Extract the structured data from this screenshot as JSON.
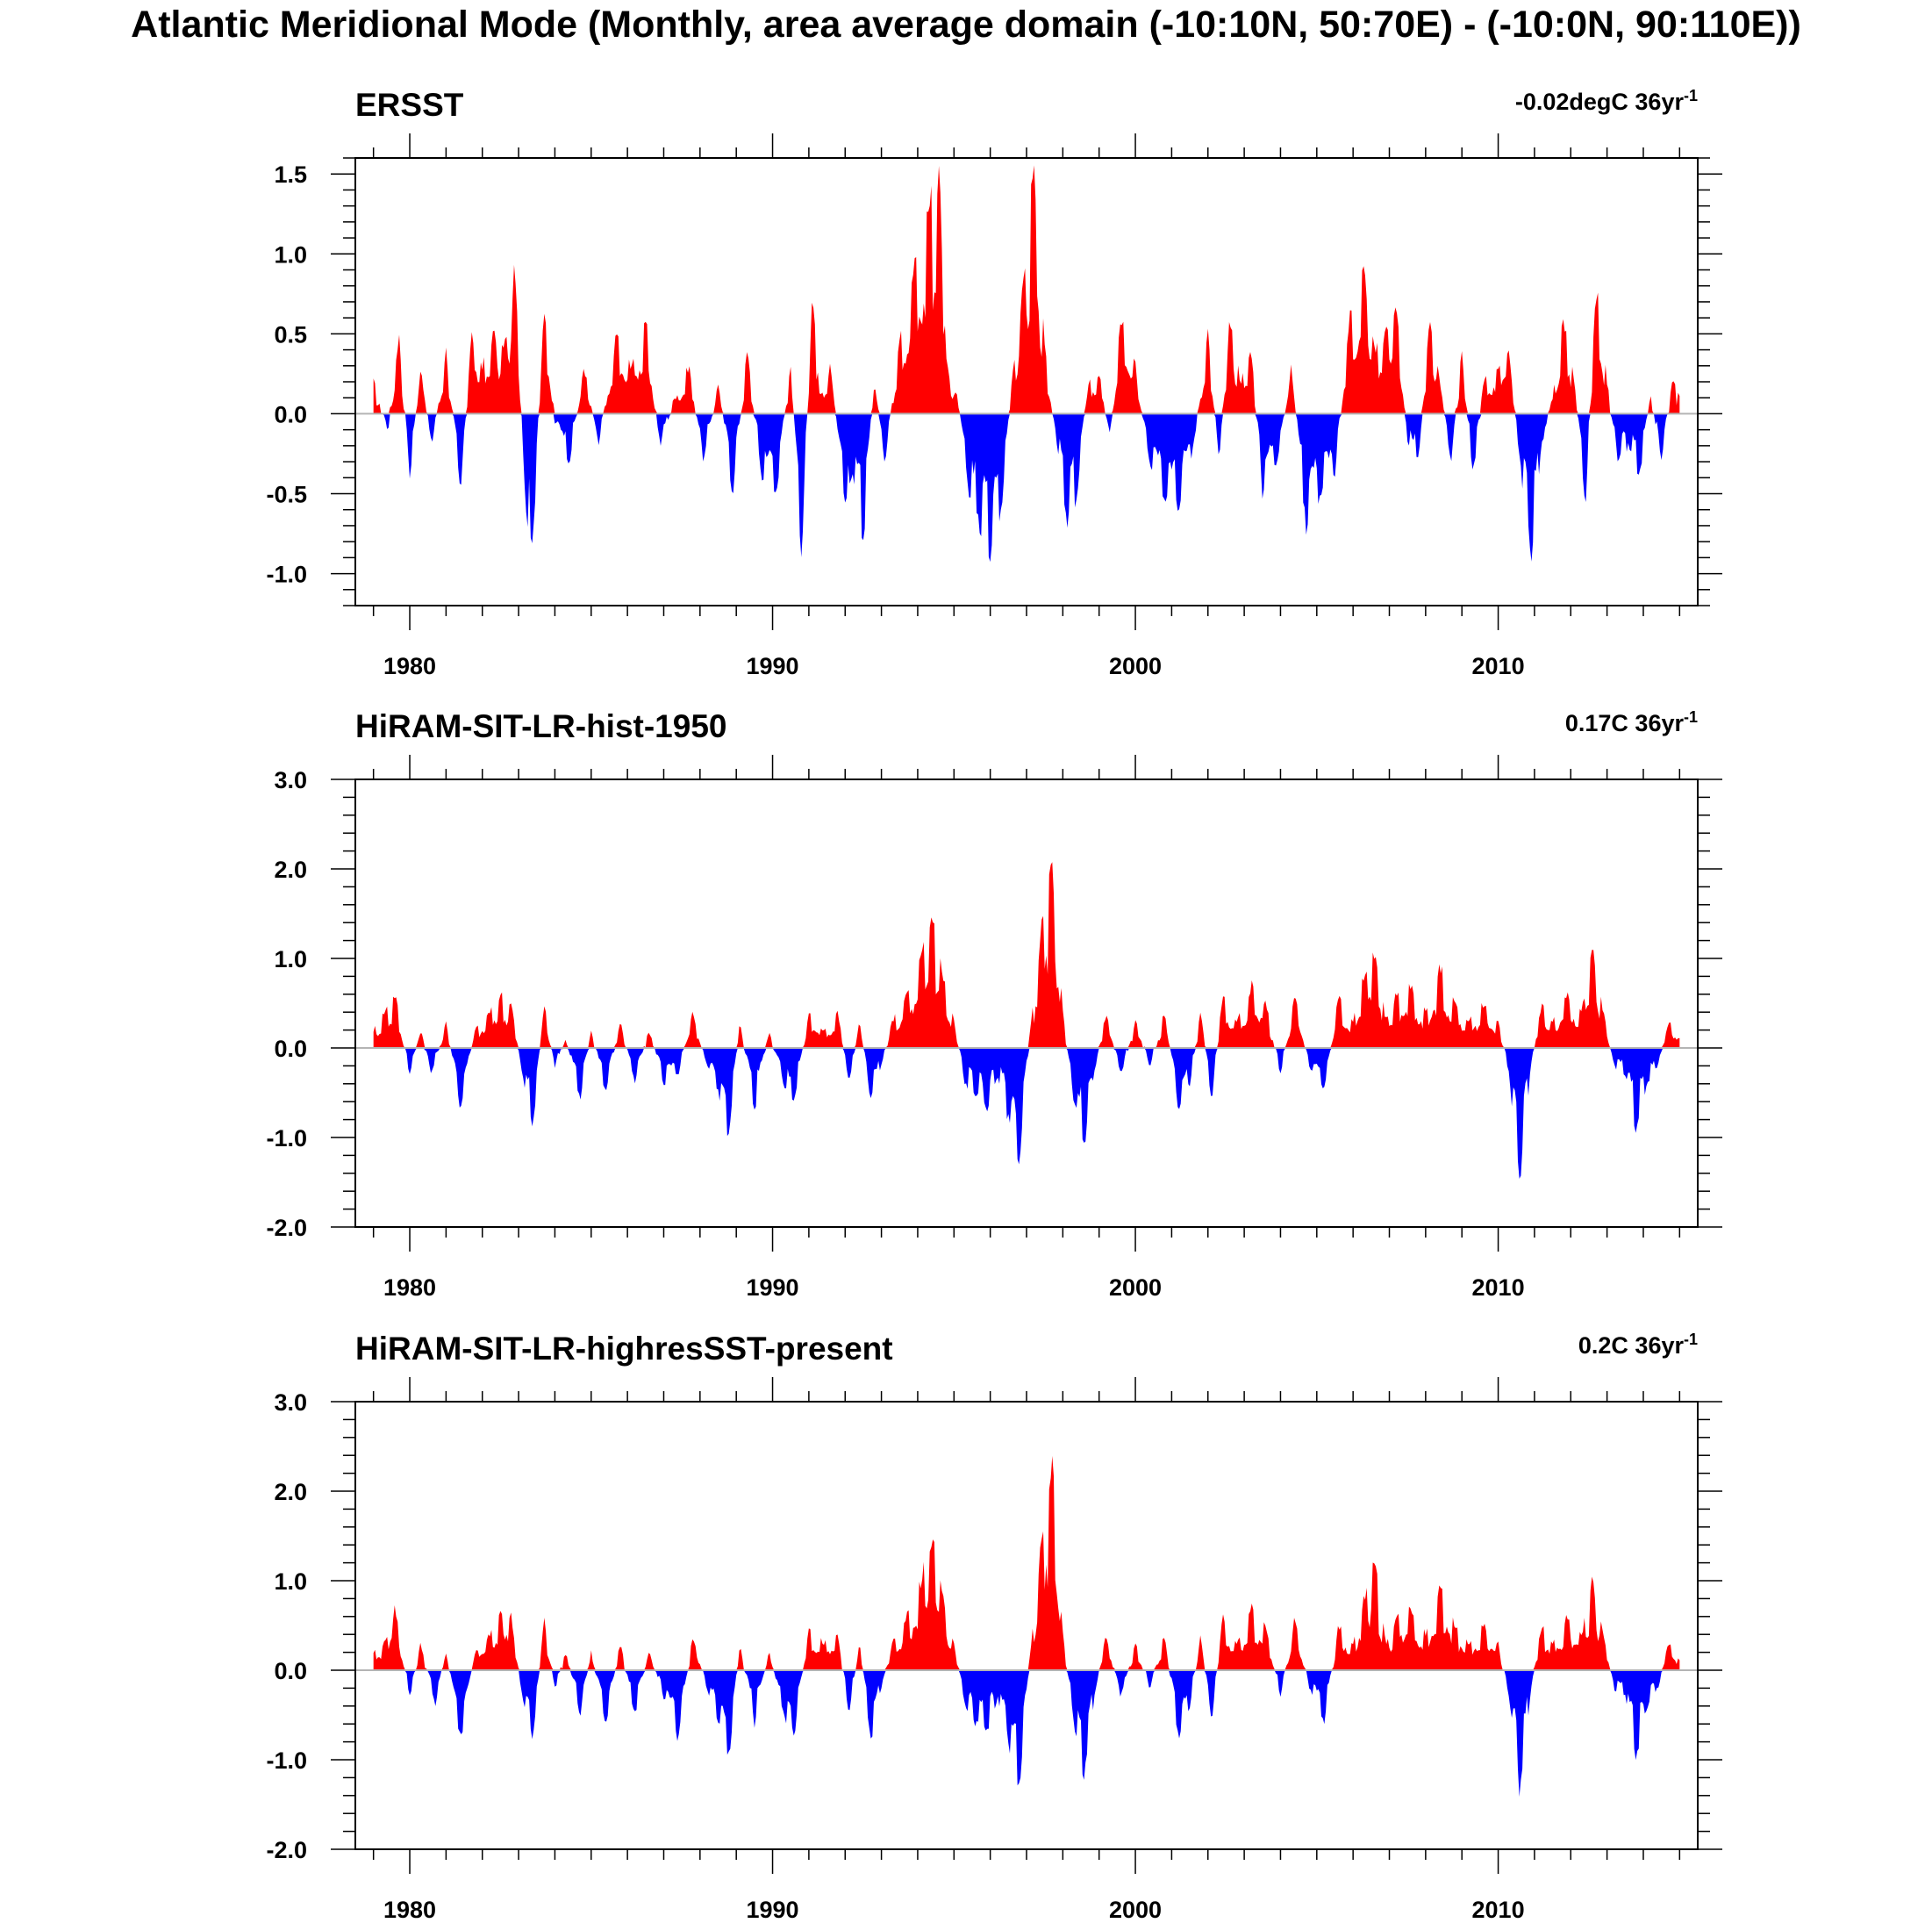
{
  "title": "Atlantic Meridional Mode (Monthly, area average domain (-10:10N, 50:70E) - (-10:0N, 90:110E))",
  "colors": {
    "positive": "#ff0000",
    "negative": "#0000ff",
    "zero_line": "#b4b4b4",
    "axis": "#000000"
  },
  "chart_data": [
    {
      "type": "area",
      "title": "ERSST",
      "trend": {
        "value": "-0.02degC 36yr",
        "exponent": "-1"
      },
      "xlim": [
        1978.5,
        2015.5
      ],
      "ylim": [
        -1.2,
        1.6
      ],
      "x_ticks": [
        1980,
        1990,
        2000,
        2010
      ],
      "x_tick_labels": [
        "1980",
        "1990",
        "2000",
        "2010"
      ],
      "y_ticks": [
        -1.0,
        -0.5,
        0.0,
        0.5,
        1.0,
        1.5
      ],
      "y_tick_labels": [
        "-1.0",
        "-0.5",
        "0.0",
        "0.5",
        "1.0",
        "1.5"
      ],
      "x_start": 1979.0,
      "x_end": 2015.0,
      "series": [
        {
          "x": [
            1979.0,
            1979.4,
            1979.7,
            1980.0,
            1980.3,
            1980.6,
            1981.0,
            1981.4,
            1981.7,
            1982.0,
            1982.3,
            1982.6,
            1982.9,
            1983.2,
            1983.4,
            1983.7,
            1984.0,
            1984.4,
            1984.8,
            1985.2,
            1985.7,
            1986.1,
            1986.5,
            1986.9,
            1987.3,
            1987.7,
            1988.1,
            1988.5,
            1988.9,
            1989.3,
            1989.7,
            1990.1,
            1990.5,
            1990.8,
            1991.1,
            1991.3,
            1991.6,
            1992.0,
            1992.2,
            1992.5,
            1992.8,
            1993.1,
            1993.5,
            1993.9,
            1994.3,
            1994.6,
            1994.8,
            1995.1,
            1995.4,
            1995.7,
            1996.0,
            1996.3,
            1996.6,
            1996.9,
            1997.2,
            1997.5,
            1997.8,
            1998.1,
            1998.4,
            1998.7,
            1999.0,
            1999.3,
            1999.6,
            2000.0,
            2000.4,
            2000.8,
            2001.2,
            2001.6,
            2002.0,
            2002.3,
            2002.6,
            2002.9,
            2003.2,
            2003.5,
            2003.9,
            2004.3,
            2004.7,
            2005.1,
            2005.5,
            2005.9,
            2006.3,
            2006.6,
            2006.9,
            2007.2,
            2007.5,
            2007.8,
            2008.1,
            2008.4,
            2008.7,
            2009.0,
            2009.3,
            2009.6,
            2010.0,
            2010.3,
            2010.6,
            2010.9,
            2011.2,
            2011.5,
            2011.8,
            2012.1,
            2012.4,
            2012.7,
            2013.0,
            2013.3,
            2013.6,
            2013.9,
            2014.2,
            2014.5,
            2014.8,
            2015.0
          ],
          "y": [
            0.2,
            -0.1,
            0.5,
            -0.4,
            0.3,
            -0.2,
            0.4,
            -0.5,
            0.5,
            0.3,
            0.5,
            0.4,
            0.9,
            -0.6,
            -0.8,
            0.7,
            -0.05,
            -0.3,
            0.3,
            -0.2,
            0.5,
            0.3,
            0.6,
            -0.2,
            0.1,
            0.3,
            -0.3,
            0.2,
            -0.5,
            0.4,
            -0.4,
            -0.5,
            0.3,
            -0.9,
            0.8,
            0.1,
            0.3,
            -0.6,
            -0.4,
            -0.8,
            0.2,
            -0.3,
            0.5,
            0.9,
            1.3,
            1.5,
            0.3,
            0.1,
            -0.5,
            -0.7,
            -0.9,
            -0.6,
            0.2,
            0.8,
            1.5,
            0.4,
            -0.1,
            -0.7,
            -0.5,
            0.2,
            0.25,
            -0.15,
            0.6,
            0.3,
            -0.3,
            -0.5,
            -0.6,
            -0.2,
            0.5,
            -0.3,
            0.6,
            0.2,
            0.4,
            -0.5,
            -0.3,
            0.3,
            -0.7,
            -0.5,
            -0.4,
            0.6,
            0.9,
            0.4,
            0.5,
            0.7,
            -0.2,
            -0.3,
            0.6,
            0.2,
            -0.3,
            0.4,
            -0.4,
            0.2,
            0.3,
            0.4,
            -0.3,
            -0.9,
            -0.2,
            0.1,
            0.6,
            0.2,
            -0.6,
            0.8,
            0.2,
            -0.3,
            -0.2,
            -0.4,
            0.1,
            -0.3,
            0.2,
            0.1
          ]
        }
      ]
    },
    {
      "type": "area",
      "title": "HiRAM-SIT-LR-hist-1950",
      "trend": {
        "value": "0.17C 36yr",
        "exponent": "-1"
      },
      "xlim": [
        1978.5,
        2015.5
      ],
      "ylim": [
        -2.0,
        3.0
      ],
      "x_ticks": [
        1980,
        1990,
        2000,
        2010
      ],
      "x_tick_labels": [
        "1980",
        "1990",
        "2000",
        "2010"
      ],
      "y_ticks": [
        -2.0,
        -1.0,
        0.0,
        1.0,
        2.0,
        3.0
      ],
      "y_tick_labels": [
        "-2.0",
        "-1.0",
        "0.0",
        "1.0",
        "2.0",
        "3.0"
      ],
      "x_start": 1979.0,
      "x_end": 2015.0,
      "series": [
        {
          "x": [
            1979.0,
            1979.3,
            1979.6,
            1980.0,
            1980.3,
            1980.6,
            1981.0,
            1981.4,
            1981.8,
            1982.2,
            1982.5,
            1982.8,
            1983.1,
            1983.4,
            1983.7,
            1984.0,
            1984.3,
            1984.7,
            1985.0,
            1985.4,
            1985.8,
            1986.2,
            1986.6,
            1987.0,
            1987.4,
            1987.8,
            1988.2,
            1988.5,
            1988.8,
            1989.1,
            1989.5,
            1989.9,
            1990.3,
            1990.6,
            1991.0,
            1991.4,
            1991.8,
            1992.1,
            1992.4,
            1992.7,
            1993.0,
            1993.3,
            1993.7,
            1994.1,
            1994.4,
            1994.7,
            1995.0,
            1995.3,
            1995.6,
            1995.9,
            1996.2,
            1996.5,
            1996.8,
            1997.1,
            1997.4,
            1997.7,
            1998.0,
            1998.3,
            1998.6,
            1998.9,
            1999.2,
            1999.6,
            2000.0,
            2000.4,
            2000.8,
            2001.2,
            2001.5,
            2001.8,
            2002.1,
            2002.4,
            2002.8,
            2003.2,
            2003.6,
            2004.0,
            2004.4,
            2004.8,
            2005.2,
            2005.6,
            2006.0,
            2006.3,
            2006.6,
            2006.9,
            2007.2,
            2007.6,
            2008.0,
            2008.4,
            2008.8,
            2009.2,
            2009.6,
            2010.0,
            2010.3,
            2010.6,
            2010.9,
            2011.2,
            2011.5,
            2011.9,
            2012.3,
            2012.6,
            2012.9,
            2013.2,
            2013.5,
            2013.8,
            2014.1,
            2014.4,
            2014.7,
            2015.0
          ],
          "y": [
            0.2,
            0.4,
            0.6,
            -0.3,
            0.2,
            -0.3,
            0.3,
            -0.7,
            0.2,
            0.4,
            0.6,
            0.5,
            -0.3,
            -0.9,
            0.5,
            -0.2,
            0.1,
            -0.6,
            0.2,
            -0.5,
            0.3,
            -0.4,
            0.2,
            -0.4,
            -0.3,
            0.4,
            -0.2,
            -0.5,
            -1.0,
            0.3,
            -0.7,
            0.2,
            -0.4,
            -0.6,
            0.4,
            0.2,
            0.4,
            -0.4,
            0.3,
            -0.6,
            -0.2,
            0.3,
            0.6,
            1.0,
            1.5,
            0.8,
            0.3,
            -0.4,
            -0.5,
            -0.7,
            -0.3,
            -0.8,
            -1.3,
            0.2,
            1.3,
            2.0,
            0.4,
            -0.6,
            -1.1,
            -0.2,
            0.4,
            -0.3,
            0.3,
            -0.2,
            0.4,
            -0.7,
            -0.4,
            0.4,
            -0.6,
            0.6,
            0.3,
            0.7,
            0.5,
            -0.3,
            0.6,
            -0.2,
            -0.5,
            0.6,
            0.3,
            0.8,
            1.1,
            0.3,
            0.6,
            0.7,
            0.4,
            0.9,
            0.5,
            0.3,
            0.5,
            0.3,
            -0.3,
            -1.5,
            -0.2,
            0.5,
            0.3,
            0.6,
            0.4,
            1.1,
            0.4,
            -0.2,
            -0.3,
            -0.9,
            -0.4,
            -0.2,
            0.3,
            0.1
          ]
        }
      ]
    },
    {
      "type": "area",
      "title": "HiRAM-SIT-LR-highresSST-present",
      "trend": {
        "value": "0.2C 36yr",
        "exponent": "-1"
      },
      "xlim": [
        1978.5,
        2015.5
      ],
      "ylim": [
        -2.0,
        3.0
      ],
      "x_ticks": [
        1980,
        1990,
        2000,
        2010
      ],
      "x_tick_labels": [
        "1980",
        "1990",
        "2000",
        "2010"
      ],
      "y_ticks": [
        -2.0,
        -1.0,
        0.0,
        1.0,
        2.0,
        3.0
      ],
      "y_tick_labels": [
        "-2.0",
        "-1.0",
        "0.0",
        "1.0",
        "2.0",
        "3.0"
      ],
      "x_start": 1979.0,
      "x_end": 2015.0,
      "series": [
        {
          "x": [
            1979.0,
            1979.3,
            1979.6,
            1980.0,
            1980.3,
            1980.7,
            1981.0,
            1981.4,
            1981.8,
            1982.2,
            1982.5,
            1982.8,
            1983.1,
            1983.4,
            1983.7,
            1984.0,
            1984.3,
            1984.7,
            1985.0,
            1985.4,
            1985.8,
            1986.2,
            1986.6,
            1987.0,
            1987.4,
            1987.8,
            1988.2,
            1988.5,
            1988.8,
            1989.1,
            1989.5,
            1989.9,
            1990.3,
            1990.6,
            1991.0,
            1991.4,
            1991.8,
            1992.1,
            1992.4,
            1992.7,
            1993.0,
            1993.3,
            1993.7,
            1994.1,
            1994.4,
            1994.7,
            1995.0,
            1995.3,
            1995.6,
            1995.9,
            1996.2,
            1996.5,
            1996.8,
            1997.1,
            1997.4,
            1997.7,
            1998.0,
            1998.3,
            1998.6,
            1998.9,
            1999.2,
            1999.6,
            2000.0,
            2000.4,
            2000.8,
            2001.2,
            2001.5,
            2001.8,
            2002.1,
            2002.4,
            2002.8,
            2003.2,
            2003.6,
            2004.0,
            2004.4,
            2004.8,
            2005.2,
            2005.6,
            2006.0,
            2006.3,
            2006.6,
            2006.9,
            2007.2,
            2007.6,
            2008.0,
            2008.4,
            2008.8,
            2009.2,
            2009.6,
            2010.0,
            2010.3,
            2010.6,
            2010.9,
            2011.2,
            2011.5,
            2011.9,
            2012.3,
            2012.6,
            2012.9,
            2013.2,
            2013.5,
            2013.8,
            2014.1,
            2014.4,
            2014.7,
            2015.0
          ],
          "y": [
            0.2,
            0.3,
            0.7,
            -0.3,
            0.3,
            -0.4,
            0.2,
            -0.8,
            0.2,
            0.4,
            0.7,
            0.6,
            -0.3,
            -0.8,
            0.6,
            -0.2,
            0.2,
            -0.5,
            0.2,
            -0.6,
            0.3,
            -0.5,
            0.2,
            -0.3,
            -0.8,
            0.4,
            -0.2,
            -0.6,
            -1.0,
            0.3,
            -0.6,
            0.2,
            -0.5,
            -0.7,
            0.5,
            0.3,
            0.4,
            -0.5,
            0.3,
            -0.8,
            -0.2,
            0.3,
            0.6,
            1.0,
            1.5,
            0.8,
            0.3,
            -0.4,
            -0.6,
            -0.7,
            -0.3,
            -0.8,
            -1.4,
            0.2,
            1.4,
            2.4,
            0.4,
            -0.6,
            -1.2,
            -0.2,
            0.4,
            -0.3,
            0.3,
            -0.2,
            0.4,
            -0.8,
            -0.4,
            0.4,
            -0.6,
            0.6,
            0.3,
            0.7,
            0.5,
            -0.3,
            0.6,
            -0.2,
            -0.6,
            0.5,
            0.3,
            0.8,
            1.2,
            0.3,
            0.6,
            0.7,
            0.4,
            1.0,
            0.5,
            0.3,
            0.5,
            0.3,
            -0.3,
            -1.4,
            -0.2,
            0.5,
            0.3,
            0.6,
            0.4,
            1.0,
            0.4,
            -0.2,
            -0.3,
            -1.0,
            -0.4,
            -0.2,
            0.3,
            0.1
          ]
        }
      ]
    }
  ]
}
